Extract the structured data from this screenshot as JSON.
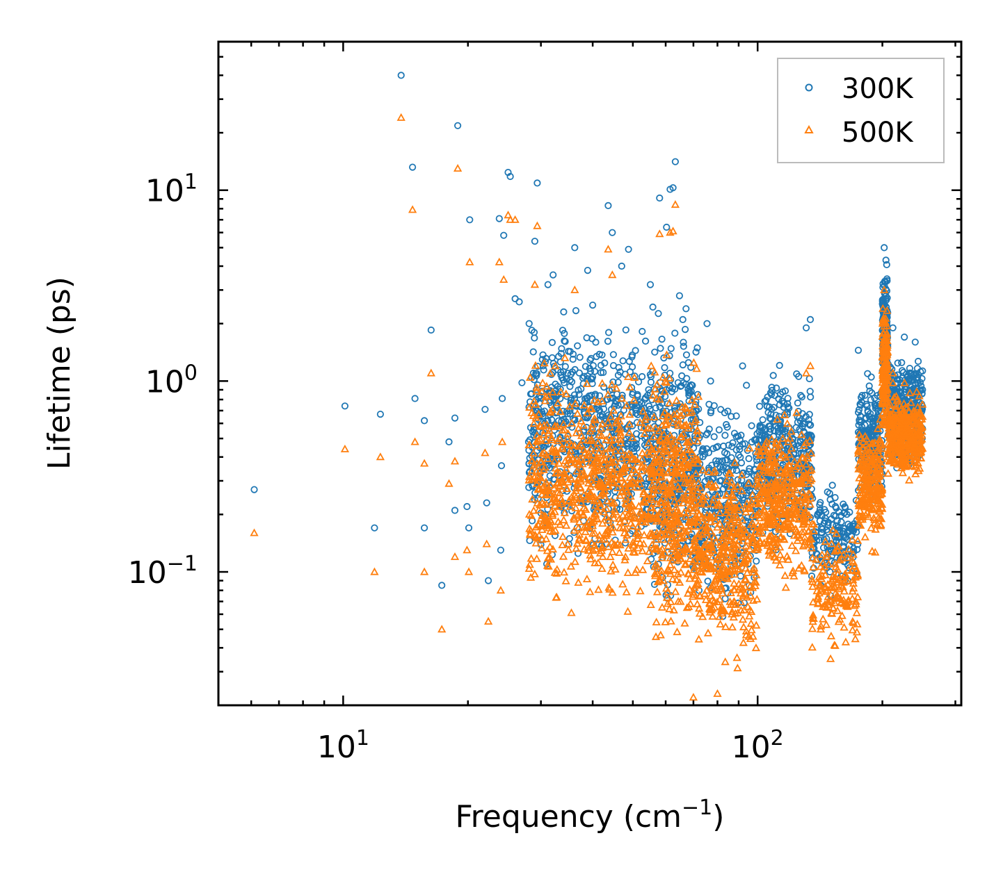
{
  "chart_data": {
    "type": "scatter",
    "title": "",
    "xlabel": "Frequency (cm",
    "xlabel_unit_sup": "−1",
    "xlabel_close": ")",
    "ylabel": "Lifetime (ps)",
    "xscale": "log",
    "yscale": "log",
    "xlim": [
      5,
      310
    ],
    "ylim": [
      0.02,
      60
    ],
    "x_ticks": [
      {
        "value": 10,
        "base": "10",
        "exp": "1"
      },
      {
        "value": 100,
        "base": "10",
        "exp": "2"
      }
    ],
    "y_ticks": [
      {
        "value": 0.1,
        "base": "10",
        "exp": "−1"
      },
      {
        "value": 1,
        "base": "10",
        "exp": "0"
      },
      {
        "value": 10,
        "base": "10",
        "exp": "1"
      }
    ],
    "legend_position": "top-right",
    "series": [
      {
        "name": "300K",
        "color": "#1f77b4",
        "marker": "circle",
        "points": [
          [
            6.1,
            0.27
          ],
          [
            10.1,
            0.74
          ],
          [
            11.9,
            0.17
          ],
          [
            12.3,
            0.67
          ],
          [
            13.8,
            40
          ],
          [
            14.7,
            13.2
          ],
          [
            14.9,
            0.81
          ],
          [
            15.7,
            0.62
          ],
          [
            15.7,
            0.17
          ],
          [
            16.3,
            1.85
          ],
          [
            17.3,
            0.085
          ],
          [
            18.0,
            0.48
          ],
          [
            18.6,
            0.64
          ],
          [
            18.6,
            0.21
          ],
          [
            18.9,
            21.8
          ],
          [
            19.9,
            0.22
          ],
          [
            20.1,
            0.17
          ],
          [
            20.2,
            7.0
          ],
          [
            22.0,
            0.71
          ],
          [
            22.2,
            0.23
          ],
          [
            22.4,
            0.09
          ],
          [
            23.8,
            7.1
          ],
          [
            24.0,
            0.13
          ],
          [
            24.1,
            0.36
          ],
          [
            24.2,
            0.81
          ],
          [
            24.4,
            5.8
          ],
          [
            25.0,
            12.4
          ],
          [
            25.3,
            11.8
          ],
          [
            26.0,
            2.7
          ],
          [
            26.6,
            2.6
          ],
          [
            27.0,
            0.98
          ],
          [
            29.4,
            10.9
          ],
          [
            29.0,
            5.4
          ],
          [
            28.1,
            2.0
          ],
          [
            28.9,
            1.8
          ],
          [
            31.2,
            3.2
          ],
          [
            32.1,
            3.6
          ],
          [
            30.2,
            0.35
          ],
          [
            31.0,
            0.11
          ],
          [
            36.2,
            5.0
          ],
          [
            38.9,
            3.8
          ],
          [
            40.0,
            2.5
          ],
          [
            43.6,
            8.3
          ],
          [
            44.6,
            6.0
          ],
          [
            47.0,
            4.0
          ],
          [
            48.8,
            4.9
          ],
          [
            55.1,
            3.2
          ],
          [
            58.0,
            9.1
          ],
          [
            60.3,
            6.4
          ],
          [
            61.5,
            10.1
          ],
          [
            62.5,
            10.3
          ],
          [
            63.3,
            14.1
          ],
          [
            64.8,
            2.8
          ],
          [
            66.0,
            2.1
          ],
          [
            75.5,
            2.0
          ],
          [
            77.0,
            1.0
          ],
          [
            92.0,
            1.2
          ],
          [
            94.0,
            0.95
          ],
          [
            108.0,
            0.85
          ],
          [
            110.0,
            0.84
          ],
          [
            131.0,
            1.9
          ],
          [
            134.0,
            2.1
          ],
          [
            142.0,
            0.085
          ],
          [
            150.0,
            0.075
          ],
          [
            160.0,
            0.095
          ],
          [
            165.0,
            0.09
          ],
          [
            175.0,
            1.45
          ],
          [
            188.0,
            1.05
          ],
          [
            202.0,
            5.0
          ],
          [
            204.0,
            4.3
          ],
          [
            212.0,
            1.9
          ],
          [
            226.0,
            1.7
          ],
          [
            240.0,
            1.6
          ],
          [
            250.0,
            0.9
          ]
        ],
        "clusters": [
          {
            "x": [
              28,
              40
            ],
            "y": [
              0.1,
              3.0
            ],
            "n": 360
          },
          {
            "x": [
              40,
              55
            ],
            "y": [
              0.09,
              2.5
            ],
            "n": 320
          },
          {
            "x": [
              55,
              72
            ],
            "y": [
              0.05,
              3.0
            ],
            "n": 420
          },
          {
            "x": [
              72,
              100
            ],
            "y": [
              0.05,
              1.0
            ],
            "n": 360
          },
          {
            "x": [
              100,
              135
            ],
            "y": [
              0.12,
              1.4
            ],
            "n": 380
          },
          {
            "x": [
              135,
              175
            ],
            "y": [
              0.07,
              0.35
            ],
            "n": 160
          },
          {
            "x": [
              175,
              200
            ],
            "y": [
              0.2,
              1.2
            ],
            "n": 240
          },
          {
            "x": [
              200,
              206
            ],
            "y": [
              0.7,
              4.8
            ],
            "n": 160
          },
          {
            "x": [
              206,
              250
            ],
            "y": [
              0.3,
              1.6
            ],
            "n": 380
          }
        ]
      },
      {
        "name": "500K",
        "color": "#ff7f0e",
        "marker": "triangle",
        "points": [
          [
            6.1,
            0.16
          ],
          [
            10.1,
            0.44
          ],
          [
            11.9,
            0.1
          ],
          [
            12.3,
            0.4
          ],
          [
            13.8,
            24
          ],
          [
            14.7,
            7.9
          ],
          [
            14.9,
            0.48
          ],
          [
            15.7,
            0.37
          ],
          [
            15.7,
            0.1
          ],
          [
            16.3,
            1.1
          ],
          [
            17.3,
            0.05
          ],
          [
            18.0,
            0.29
          ],
          [
            18.6,
            0.38
          ],
          [
            18.6,
            0.12
          ],
          [
            18.9,
            13
          ],
          [
            19.9,
            0.13
          ],
          [
            20.1,
            0.1
          ],
          [
            20.2,
            4.2
          ],
          [
            22.0,
            0.42
          ],
          [
            22.2,
            0.14
          ],
          [
            22.4,
            0.055
          ],
          [
            23.8,
            4.2
          ],
          [
            24.0,
            0.08
          ],
          [
            24.2,
            0.48
          ],
          [
            24.4,
            3.4
          ],
          [
            25.0,
            7.4
          ],
          [
            25.3,
            7.0
          ],
          [
            26.0,
            7.0
          ],
          [
            29.4,
            6.5
          ],
          [
            29.0,
            3.2
          ],
          [
            36.2,
            3.0
          ],
          [
            43.6,
            4.9
          ],
          [
            44.6,
            3.6
          ],
          [
            58.0,
            5.9
          ],
          [
            61.5,
            6.0
          ],
          [
            62.5,
            6.1
          ],
          [
            63.3,
            8.4
          ],
          [
            70.0,
            0.022
          ],
          [
            80.0,
            0.023
          ],
          [
            131.0,
            1.1
          ],
          [
            134.0,
            1.2
          ],
          [
            150.0,
            0.035
          ],
          [
            142.0,
            0.05
          ],
          [
            202.0,
            3.0
          ],
          [
            212.0,
            1.1
          ]
        ],
        "clusters": [
          {
            "x": [
              28,
              40
            ],
            "y": [
              0.05,
              1.8
            ],
            "n": 360
          },
          {
            "x": [
              40,
              55
            ],
            "y": [
              0.05,
              1.5
            ],
            "n": 320
          },
          {
            "x": [
              55,
              72
            ],
            "y": [
              0.03,
              1.8
            ],
            "n": 440
          },
          {
            "x": [
              72,
              100
            ],
            "y": [
              0.025,
              0.6
            ],
            "n": 380
          },
          {
            "x": [
              100,
              135
            ],
            "y": [
              0.07,
              0.8
            ],
            "n": 380
          },
          {
            "x": [
              135,
              175
            ],
            "y": [
              0.035,
              0.2
            ],
            "n": 160
          },
          {
            "x": [
              175,
              200
            ],
            "y": [
              0.12,
              0.7
            ],
            "n": 240
          },
          {
            "x": [
              200,
              206
            ],
            "y": [
              0.45,
              2.8
            ],
            "n": 160
          },
          {
            "x": [
              206,
              250
            ],
            "y": [
              0.27,
              1.0
            ],
            "n": 380
          }
        ]
      }
    ]
  }
}
